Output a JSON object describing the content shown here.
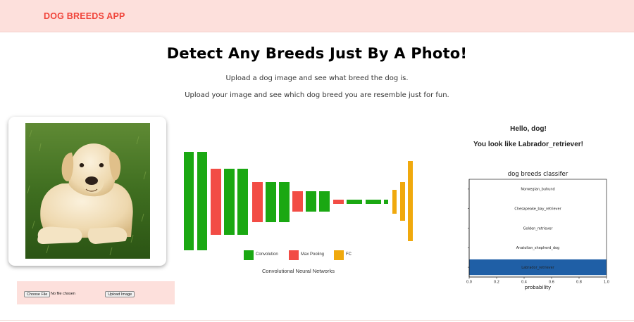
{
  "app": {
    "brand": "DOG BREEDS APP",
    "brand_color": "#f0443a",
    "nav_bg": "#fde0dc"
  },
  "hero": {
    "title": "Detect Any Breeds Just By A Photo!",
    "subtitle_1": "Upload a dog image and see what breed the dog is.",
    "subtitle_2": "Upload your image and see which dog breed you are resemble just for fun."
  },
  "upload": {
    "choose_file_label": "Choose File",
    "file_status": "No file chosen",
    "upload_label": "Upload Image"
  },
  "cnn_diagram": {
    "legend": [
      {
        "label": "Convolution",
        "color": "#1aa812"
      },
      {
        "label": "Max Pooling",
        "color": "#f24c45"
      },
      {
        "label": "FC",
        "color": "#f0a90d"
      }
    ],
    "caption": "Convolutional Neural Networks"
  },
  "result": {
    "greeting": "Hello, dog!",
    "prediction": "You look like Labrador_retriever!"
  },
  "chart_data": {
    "type": "bar",
    "orientation": "horizontal",
    "title": "dog breeds classifer",
    "xlabel": "probability",
    "ylabel": "",
    "xlim": [
      0,
      1.0
    ],
    "xticks": [
      "0.0",
      "0.2",
      "0.4",
      "0.6",
      "0.8",
      "1.0"
    ],
    "categories": [
      "Norwegian_buhund",
      "Chesapeake_bay_retriever",
      "Golden_retriever",
      "Anatolian_shepherd_dog",
      "Labrador_retriever"
    ],
    "values": [
      0.0,
      0.0,
      0.0,
      0.0,
      1.0
    ],
    "bar_color": "#1f5fa6",
    "grid": false
  }
}
